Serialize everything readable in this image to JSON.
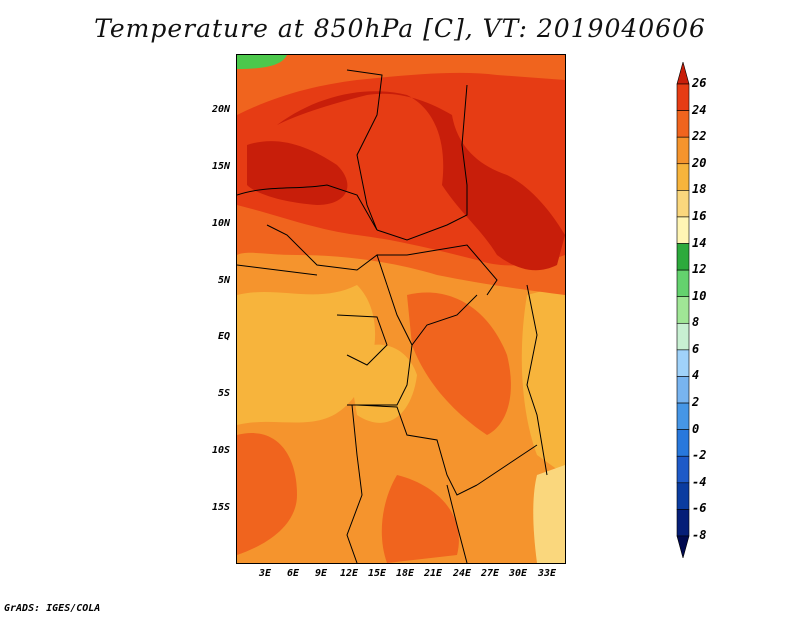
{
  "title": "Temperature at 850hPa [C], VT: 2019040606",
  "credit": "GrADS: IGES/COLA",
  "lat_labels": [
    "20N",
    "15N",
    "10N",
    "5N",
    "EQ",
    "5S",
    "10S",
    "15S"
  ],
  "lon_labels": [
    "3E",
    "6E",
    "9E",
    "12E",
    "15E",
    "18E",
    "21E",
    "24E",
    "27E",
    "30E",
    "33E"
  ],
  "colorbar": {
    "labels": [
      "26",
      "24",
      "22",
      "20",
      "18",
      "16",
      "14",
      "12",
      "10",
      "8",
      "6",
      "4",
      "2",
      "0",
      "-2",
      "-4",
      "-6",
      "-8"
    ],
    "colors": [
      "#c81e0a",
      "#e63c14",
      "#f0641e",
      "#f5942d",
      "#f7b43c",
      "#fad77d",
      "#fff5b4",
      "#2daa3c",
      "#64d26e",
      "#a0e696",
      "#c8f0d2",
      "#a0d2fa",
      "#78b4f0",
      "#4696e6",
      "#2878dc",
      "#1e5ac8",
      "#0a3ca0",
      "#051e78",
      "#000a50"
    ]
  },
  "map_colors": {
    "deep_red": "#c81e0a",
    "red": "#e63c14",
    "red_orange": "#f0641e",
    "orange": "#f5942d",
    "light_orange": "#f7b43c",
    "yellow": "#fad77d",
    "green": "#4cc84c"
  }
}
